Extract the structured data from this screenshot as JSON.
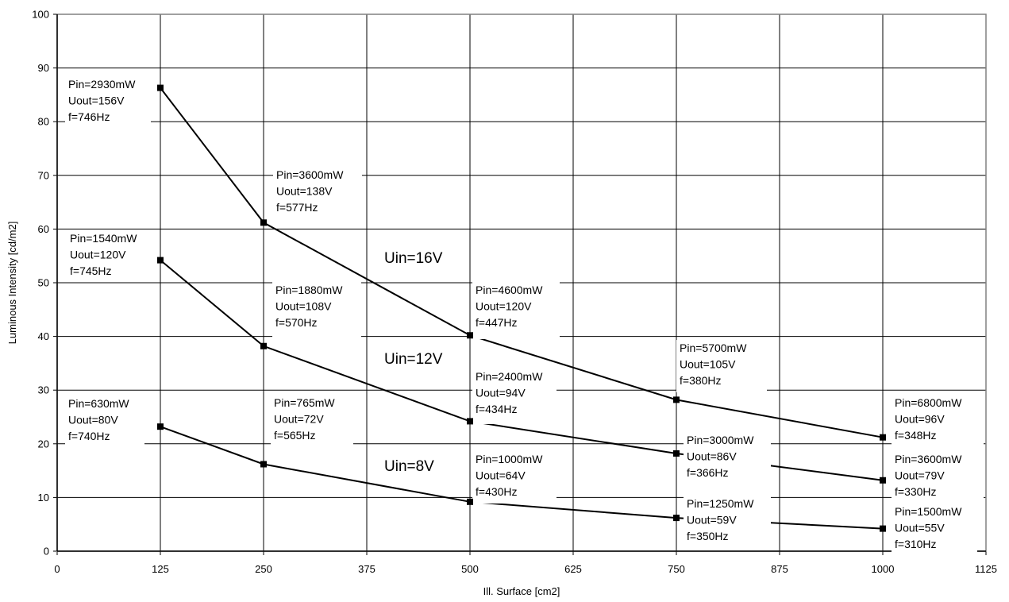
{
  "chart_data": {
    "type": "line",
    "xlabel": "Ill. Surface [cm2]",
    "ylabel": "Luminous Intensity [cd/m2]",
    "xlim": [
      0,
      1125
    ],
    "ylim": [
      0,
      100
    ],
    "x_ticks": [
      "0",
      "125",
      "250",
      "375",
      "500",
      "625",
      "750",
      "875",
      "1000",
      "1125"
    ],
    "y_ticks": [
      "0",
      "10",
      "20",
      "30",
      "40",
      "50",
      "60",
      "70",
      "80",
      "90",
      "100"
    ],
    "grid": true,
    "x": [
      125,
      250,
      500,
      750,
      1000
    ],
    "series": [
      {
        "name": "Uin=16V",
        "values": [
          86.3,
          61.2,
          40.2,
          28.2,
          21.2
        ],
        "annotations": [
          [
            "Pin=2930mW",
            "Uout=156V",
            "f=746Hz"
          ],
          [
            "Pin=3600mW",
            "Uout=138V",
            "f=577Hz"
          ],
          [
            "Pin=4600mW",
            "Uout=120V",
            "f=447Hz"
          ],
          [
            "Pin=5700mW",
            "Uout=105V",
            "f=380Hz"
          ],
          [
            "Pin=6800mW",
            "Uout=96V",
            "f=348Hz"
          ]
        ]
      },
      {
        "name": "Uin=12V",
        "values": [
          54.2,
          38.2,
          24.2,
          18.2,
          13.2
        ],
        "annotations": [
          [
            "Pin=1540mW",
            "Uout=120V",
            "f=745Hz"
          ],
          [
            "Pin=1880mW",
            "Uout=108V",
            "f=570Hz"
          ],
          [
            "Pin=2400mW",
            "Uout=94V",
            "f=434Hz"
          ],
          [
            "Pin=3000mW",
            "Uout=86V",
            "f=366Hz"
          ],
          [
            "Pin=3600mW",
            "Uout=79V",
            "f=330Hz"
          ]
        ]
      },
      {
        "name": "Uin=8V",
        "values": [
          23.2,
          16.2,
          9.2,
          6.2,
          4.2
        ],
        "annotations": [
          [
            "Pin=630mW",
            "Uout=80V",
            "f=740Hz"
          ],
          [
            "Pin=765mW",
            "Uout=72V",
            "f=565Hz"
          ],
          [
            "Pin=1000mW",
            "Uout=64V",
            "f=430Hz"
          ],
          [
            "Pin=1250mW",
            "Uout=59V",
            "f=350Hz"
          ],
          [
            "Pin=1500mW",
            "Uout=55V",
            "f=310Hz"
          ]
        ]
      }
    ],
    "colors": {
      "line": "#000000",
      "grid": "#000000",
      "background": "#ffffff"
    }
  }
}
